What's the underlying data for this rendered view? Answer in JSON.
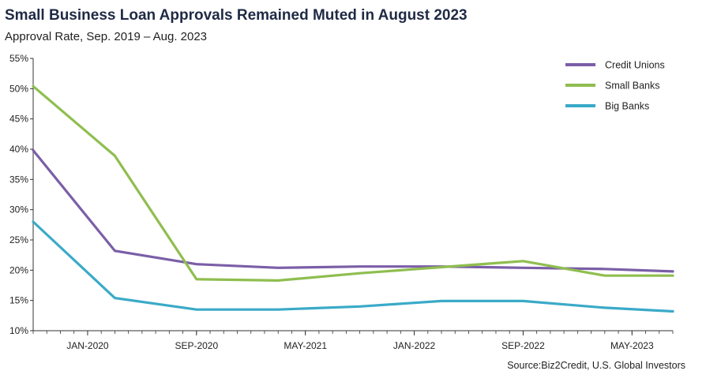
{
  "header": {
    "title": "Small Business Loan Approvals Remained Muted in August 2023",
    "subtitle": "Approval Rate, Sep. 2019 – Aug. 2023"
  },
  "source": "Source:Biz2Credit, U.S. Global Investors",
  "chart_data": {
    "type": "line",
    "title": "Small Business Loan Approvals Remained Muted in August 2023",
    "subtitle": "Approval Rate, Sep. 2019 – Aug. 2023",
    "x_tick_labels": [
      "JAN-2020",
      "SEP-2020",
      "MAY-2021",
      "JAN-2022",
      "SEP-2022",
      "MAY-2023"
    ],
    "x_tick_dates": [
      "2020-01",
      "2020-09",
      "2021-05",
      "2022-01",
      "2022-09",
      "2023-05"
    ],
    "x_range": [
      "2019-09",
      "2023-08"
    ],
    "y_tick_labels": [
      "10%",
      "15%",
      "20%",
      "25%",
      "30%",
      "35%",
      "40%",
      "45%",
      "50%",
      "55%"
    ],
    "y_unit": "%",
    "ylim": [
      10,
      55
    ],
    "grid": false,
    "legend_position": "top-right",
    "series": [
      {
        "name": "Credit Unions",
        "color": "#7b5ea7",
        "x": [
          "2019-09",
          "2020-03",
          "2020-09",
          "2021-03",
          "2021-09",
          "2022-03",
          "2022-09",
          "2023-03",
          "2023-08"
        ],
        "values": [
          39.8,
          23.2,
          21.0,
          20.4,
          20.6,
          20.6,
          20.4,
          20.2,
          19.8
        ]
      },
      {
        "name": "Small Banks",
        "color": "#8fbe4f",
        "x": [
          "2019-09",
          "2020-03",
          "2020-09",
          "2021-03",
          "2021-09",
          "2022-03",
          "2022-09",
          "2023-03",
          "2023-08"
        ],
        "values": [
          50.4,
          38.9,
          18.5,
          18.3,
          19.5,
          20.5,
          21.5,
          19.1,
          19.1
        ]
      },
      {
        "name": "Big Banks",
        "color": "#3aaac8",
        "x": [
          "2019-09",
          "2020-03",
          "2020-09",
          "2021-03",
          "2021-09",
          "2022-03",
          "2022-09",
          "2023-03",
          "2023-08"
        ],
        "values": [
          28.0,
          15.4,
          13.5,
          13.5,
          14.0,
          14.9,
          14.9,
          13.8,
          13.2
        ]
      }
    ]
  }
}
